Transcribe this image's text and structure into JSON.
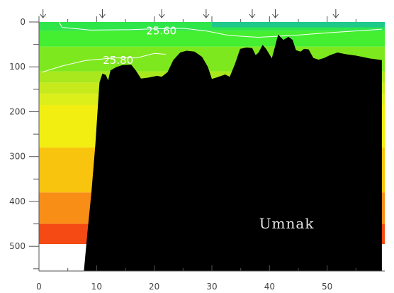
{
  "chart_data": {
    "type": "section-contour",
    "title": "",
    "xlabel": "",
    "ylabel": "",
    "xlim": [
      0,
      60
    ],
    "ylim": [
      0,
      555
    ],
    "y_inverted": true,
    "x_ticks": [
      0,
      10,
      20,
      30,
      40,
      50
    ],
    "x_tick_labels": [
      "0",
      "10",
      "20",
      "30",
      "40",
      "50"
    ],
    "y_ticks": [
      0,
      100,
      200,
      300,
      400,
      500
    ],
    "y_tick_labels": [
      "0",
      "100",
      "200",
      "300",
      "400",
      "500"
    ],
    "station_markers": [
      0.7,
      11,
      21.3,
      29,
      37,
      41,
      51.5
    ],
    "depth_bands": [
      {
        "top": 0,
        "bottom": 20,
        "color": "#2ee64a"
      },
      {
        "top": 20,
        "bottom": 55,
        "color": "#44ee30"
      },
      {
        "top": 55,
        "bottom": 110,
        "color": "#7ee81e"
      },
      {
        "top": 110,
        "bottom": 135,
        "color": "#a8e81c"
      },
      {
        "top": 135,
        "bottom": 160,
        "color": "#c6ea1c"
      },
      {
        "top": 160,
        "bottom": 185,
        "color": "#dcef1a"
      },
      {
        "top": 185,
        "bottom": 280,
        "color": "#f2ee12"
      },
      {
        "top": 280,
        "bottom": 380,
        "color": "#f8c40e"
      },
      {
        "top": 380,
        "bottom": 450,
        "color": "#f98e16"
      },
      {
        "top": 450,
        "bottom": 495,
        "color": "#f64a14"
      },
      {
        "top": 495,
        "bottom": 555,
        "color": "#ffffff"
      }
    ],
    "surface_teal_patch": {
      "color": "#1ec98a",
      "x_start": 30,
      "x_end": 60,
      "depth": 12
    },
    "contours": [
      {
        "value": 25.6,
        "label": "25.60",
        "label_x": 18.6,
        "label_depth": 20,
        "points": [
          [
            3.5,
            0
          ],
          [
            4,
            12
          ],
          [
            9,
            18
          ],
          [
            16,
            17
          ],
          [
            20.5,
            15
          ],
          [
            25,
            14
          ],
          [
            29,
            20
          ],
          [
            33,
            30
          ],
          [
            38,
            34
          ],
          [
            44,
            30
          ],
          [
            50,
            24
          ],
          [
            55,
            20
          ],
          [
            59.5,
            16
          ]
        ]
      },
      {
        "value": 25.8,
        "label": "25.80",
        "label_x": 11.1,
        "label_depth": 85,
        "points": [
          [
            0.5,
            112
          ],
          [
            4,
            98
          ],
          [
            8,
            86
          ],
          [
            13,
            80
          ],
          [
            17,
            80
          ],
          [
            20,
            70
          ],
          [
            22,
            72
          ]
        ]
      }
    ],
    "bathymetry": [
      [
        7.8,
        555
      ],
      [
        8.4,
        470
      ],
      [
        9.1,
        380
      ],
      [
        9.8,
        270
      ],
      [
        10.2,
        190
      ],
      [
        10.5,
        135
      ],
      [
        11,
        115
      ],
      [
        11.6,
        118
      ],
      [
        12,
        130
      ],
      [
        12.4,
        108
      ],
      [
        13.5,
        100
      ],
      [
        14.5,
        96
      ],
      [
        16,
        95
      ],
      [
        16.8,
        108
      ],
      [
        17.7,
        126
      ],
      [
        19,
        124
      ],
      [
        20.5,
        120
      ],
      [
        21.3,
        122
      ],
      [
        22.3,
        112
      ],
      [
        23.3,
        85
      ],
      [
        24.5,
        68
      ],
      [
        25.6,
        64
      ],
      [
        27,
        66
      ],
      [
        28.3,
        78
      ],
      [
        29.3,
        100
      ],
      [
        30,
        127
      ],
      [
        31,
        123
      ],
      [
        32.3,
        117
      ],
      [
        33.1,
        122
      ],
      [
        34,
        94
      ],
      [
        34.9,
        60
      ],
      [
        36,
        57
      ],
      [
        37,
        58
      ],
      [
        37.6,
        74
      ],
      [
        38.1,
        68
      ],
      [
        38.8,
        51
      ],
      [
        39.4,
        60
      ],
      [
        40.4,
        81
      ],
      [
        40.9,
        57
      ],
      [
        41.5,
        28
      ],
      [
        42.4,
        40
      ],
      [
        43.3,
        33
      ],
      [
        44,
        40
      ],
      [
        44.6,
        63
      ],
      [
        45.4,
        66
      ],
      [
        46,
        60
      ],
      [
        46.8,
        61
      ],
      [
        47.6,
        80
      ],
      [
        48.5,
        84
      ],
      [
        49.5,
        80
      ],
      [
        50.5,
        74
      ],
      [
        51.8,
        68
      ],
      [
        53.3,
        72
      ],
      [
        55,
        75
      ],
      [
        57.3,
        81
      ],
      [
        59.5,
        85
      ],
      [
        59.5,
        555
      ]
    ],
    "annotations": [
      {
        "text": "Umnak",
        "x": 38.2,
        "depth": 460
      }
    ],
    "colors": {
      "terrain": "#000000",
      "contour_line": "#ffffff",
      "axis": "#555555"
    }
  }
}
